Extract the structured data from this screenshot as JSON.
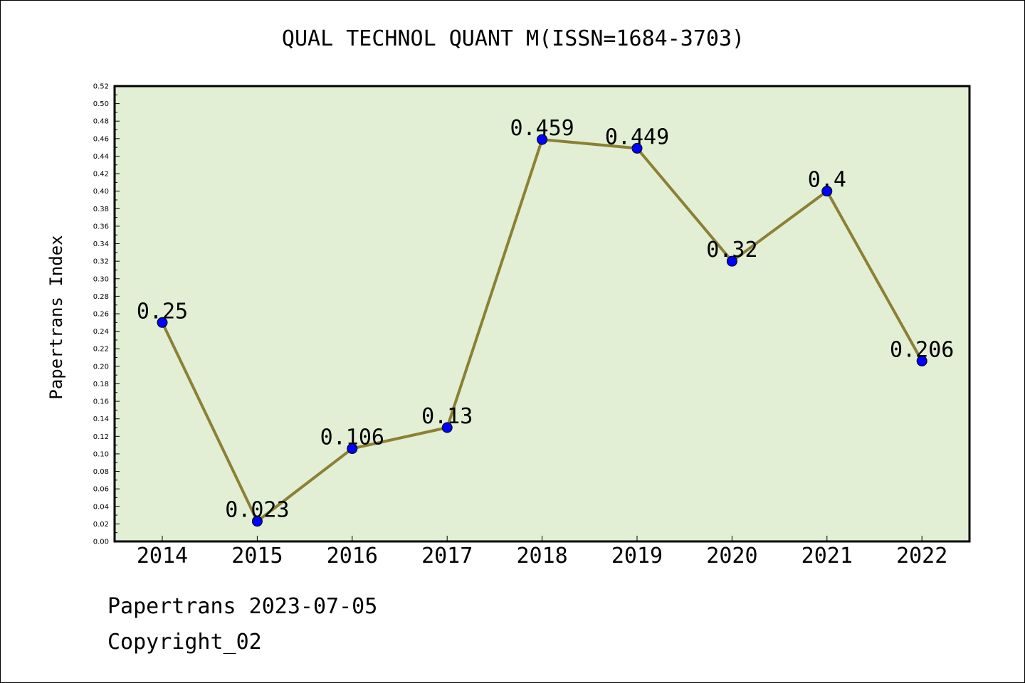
{
  "chart_data": {
    "type": "line",
    "title": "QUAL TECHNOL QUANT M(ISSN=1684-3703)",
    "xlabel": "",
    "ylabel": "Papertrans Index",
    "categories": [
      "2014",
      "2015",
      "2016",
      "2017",
      "2018",
      "2019",
      "2020",
      "2021",
      "2022"
    ],
    "series": [
      {
        "values": [
          0.25,
          0.023,
          0.106,
          0.13,
          0.459,
          0.449,
          0.32,
          0.4,
          0.206
        ],
        "data_labels": [
          "0.25",
          "0.023",
          "0.106",
          "0.13",
          "0.459",
          "0.449",
          "0.32",
          "0.4",
          "0.206"
        ]
      }
    ],
    "ylim": [
      0,
      0.52
    ],
    "yticks": [
      "0.00",
      "0.02",
      "0.04",
      "0.06",
      "0.08",
      "0.10",
      "0.12",
      "0.14",
      "0.16",
      "0.18",
      "0.20",
      "0.22",
      "0.24",
      "0.26",
      "0.28",
      "0.30",
      "0.32",
      "0.34",
      "0.36",
      "0.38",
      "0.40",
      "0.42",
      "0.44",
      "0.46",
      "0.48",
      "0.50",
      "0.52"
    ],
    "grid": false,
    "legend": "none",
    "colors": {
      "plot_background": "#e2efd5",
      "line": "#8b8035",
      "marker": "#0000ff"
    }
  },
  "footer": {
    "date_line": "Papertrans 2023-07-05",
    "copyright": "Copyright_02"
  }
}
